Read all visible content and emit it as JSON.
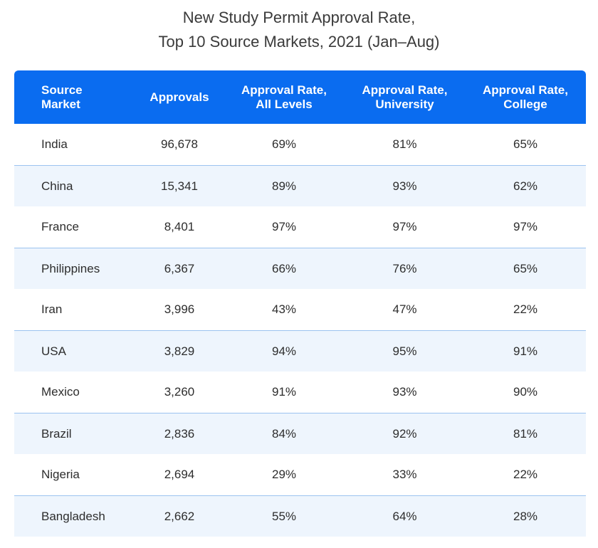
{
  "chart_data": {
    "type": "table",
    "title": [
      "New Study Permit Approval Rate,",
      "Top 10 Source Markets, 2021 (Jan–Aug)"
    ],
    "columns": [
      "Source\nMarket",
      "Approvals",
      "Approval Rate,\nAll Levels",
      "Approval Rate,\nUniversity",
      "Approval Rate,\nCollege"
    ],
    "rows": [
      [
        "India",
        "96,678",
        "69%",
        "81%",
        "65%"
      ],
      [
        "China",
        "15,341",
        "89%",
        "93%",
        "62%"
      ],
      [
        "France",
        "8,401",
        "97%",
        "97%",
        "97%"
      ],
      [
        "Philippines",
        "6,367",
        "66%",
        "76%",
        "65%"
      ],
      [
        "Iran",
        "3,996",
        "43%",
        "47%",
        "22%"
      ],
      [
        "USA",
        "3,829",
        "94%",
        "95%",
        "91%"
      ],
      [
        "Mexico",
        "3,260",
        "91%",
        "93%",
        "90%"
      ],
      [
        "Brazil",
        "2,836",
        "84%",
        "92%",
        "81%"
      ],
      [
        "Nigeria",
        "2,694",
        "29%",
        "33%",
        "22%"
      ],
      [
        "Bangladesh",
        "2,662",
        "55%",
        "64%",
        "28%"
      ]
    ]
  },
  "colors": {
    "header_bg": "#0a6cf0",
    "header_text": "#ffffff",
    "alt_row_bg": "#eef5fd",
    "row_border": "#9cc3f0"
  }
}
